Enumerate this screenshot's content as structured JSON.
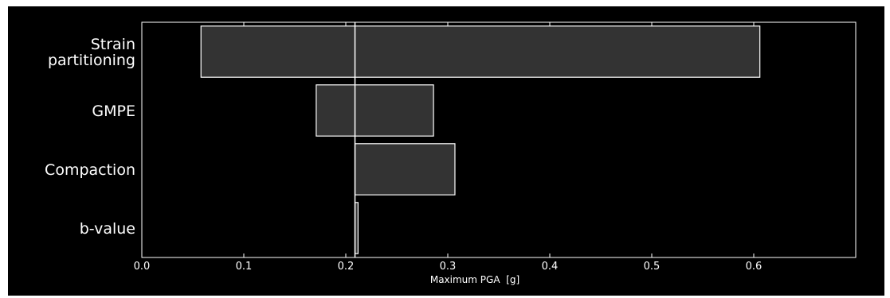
{
  "chart_data": {
    "type": "bar",
    "orientation": "horizontal",
    "style": "tornado",
    "categories": [
      "Strain\npartitioning",
      "GMPE",
      "Compaction",
      "b-value"
    ],
    "ranges": [
      {
        "low": 0.058,
        "high": 0.606
      },
      {
        "low": 0.171,
        "high": 0.286
      },
      {
        "low": 0.209,
        "high": 0.307
      },
      {
        "low": 0.209,
        "high": 0.212
      }
    ],
    "reference_value": 0.209,
    "xlabel": "Maximum PGA  [g]",
    "ylabel": "",
    "title": "",
    "xlim": [
      0.0,
      0.7
    ],
    "xticks": [
      0.0,
      0.1,
      0.2,
      0.3,
      0.4,
      0.5,
      0.6
    ],
    "xtick_labels": [
      "0.0",
      "0.1",
      "0.2",
      "0.3",
      "0.4",
      "0.5",
      "0.6"
    ],
    "grid": false,
    "colors": {
      "background": "#000000",
      "bar_fill": "#333333",
      "bar_edge": "#ffffff",
      "axis": "#ffffff",
      "text": "#ffffff",
      "reference_line": "#ffffff"
    }
  }
}
